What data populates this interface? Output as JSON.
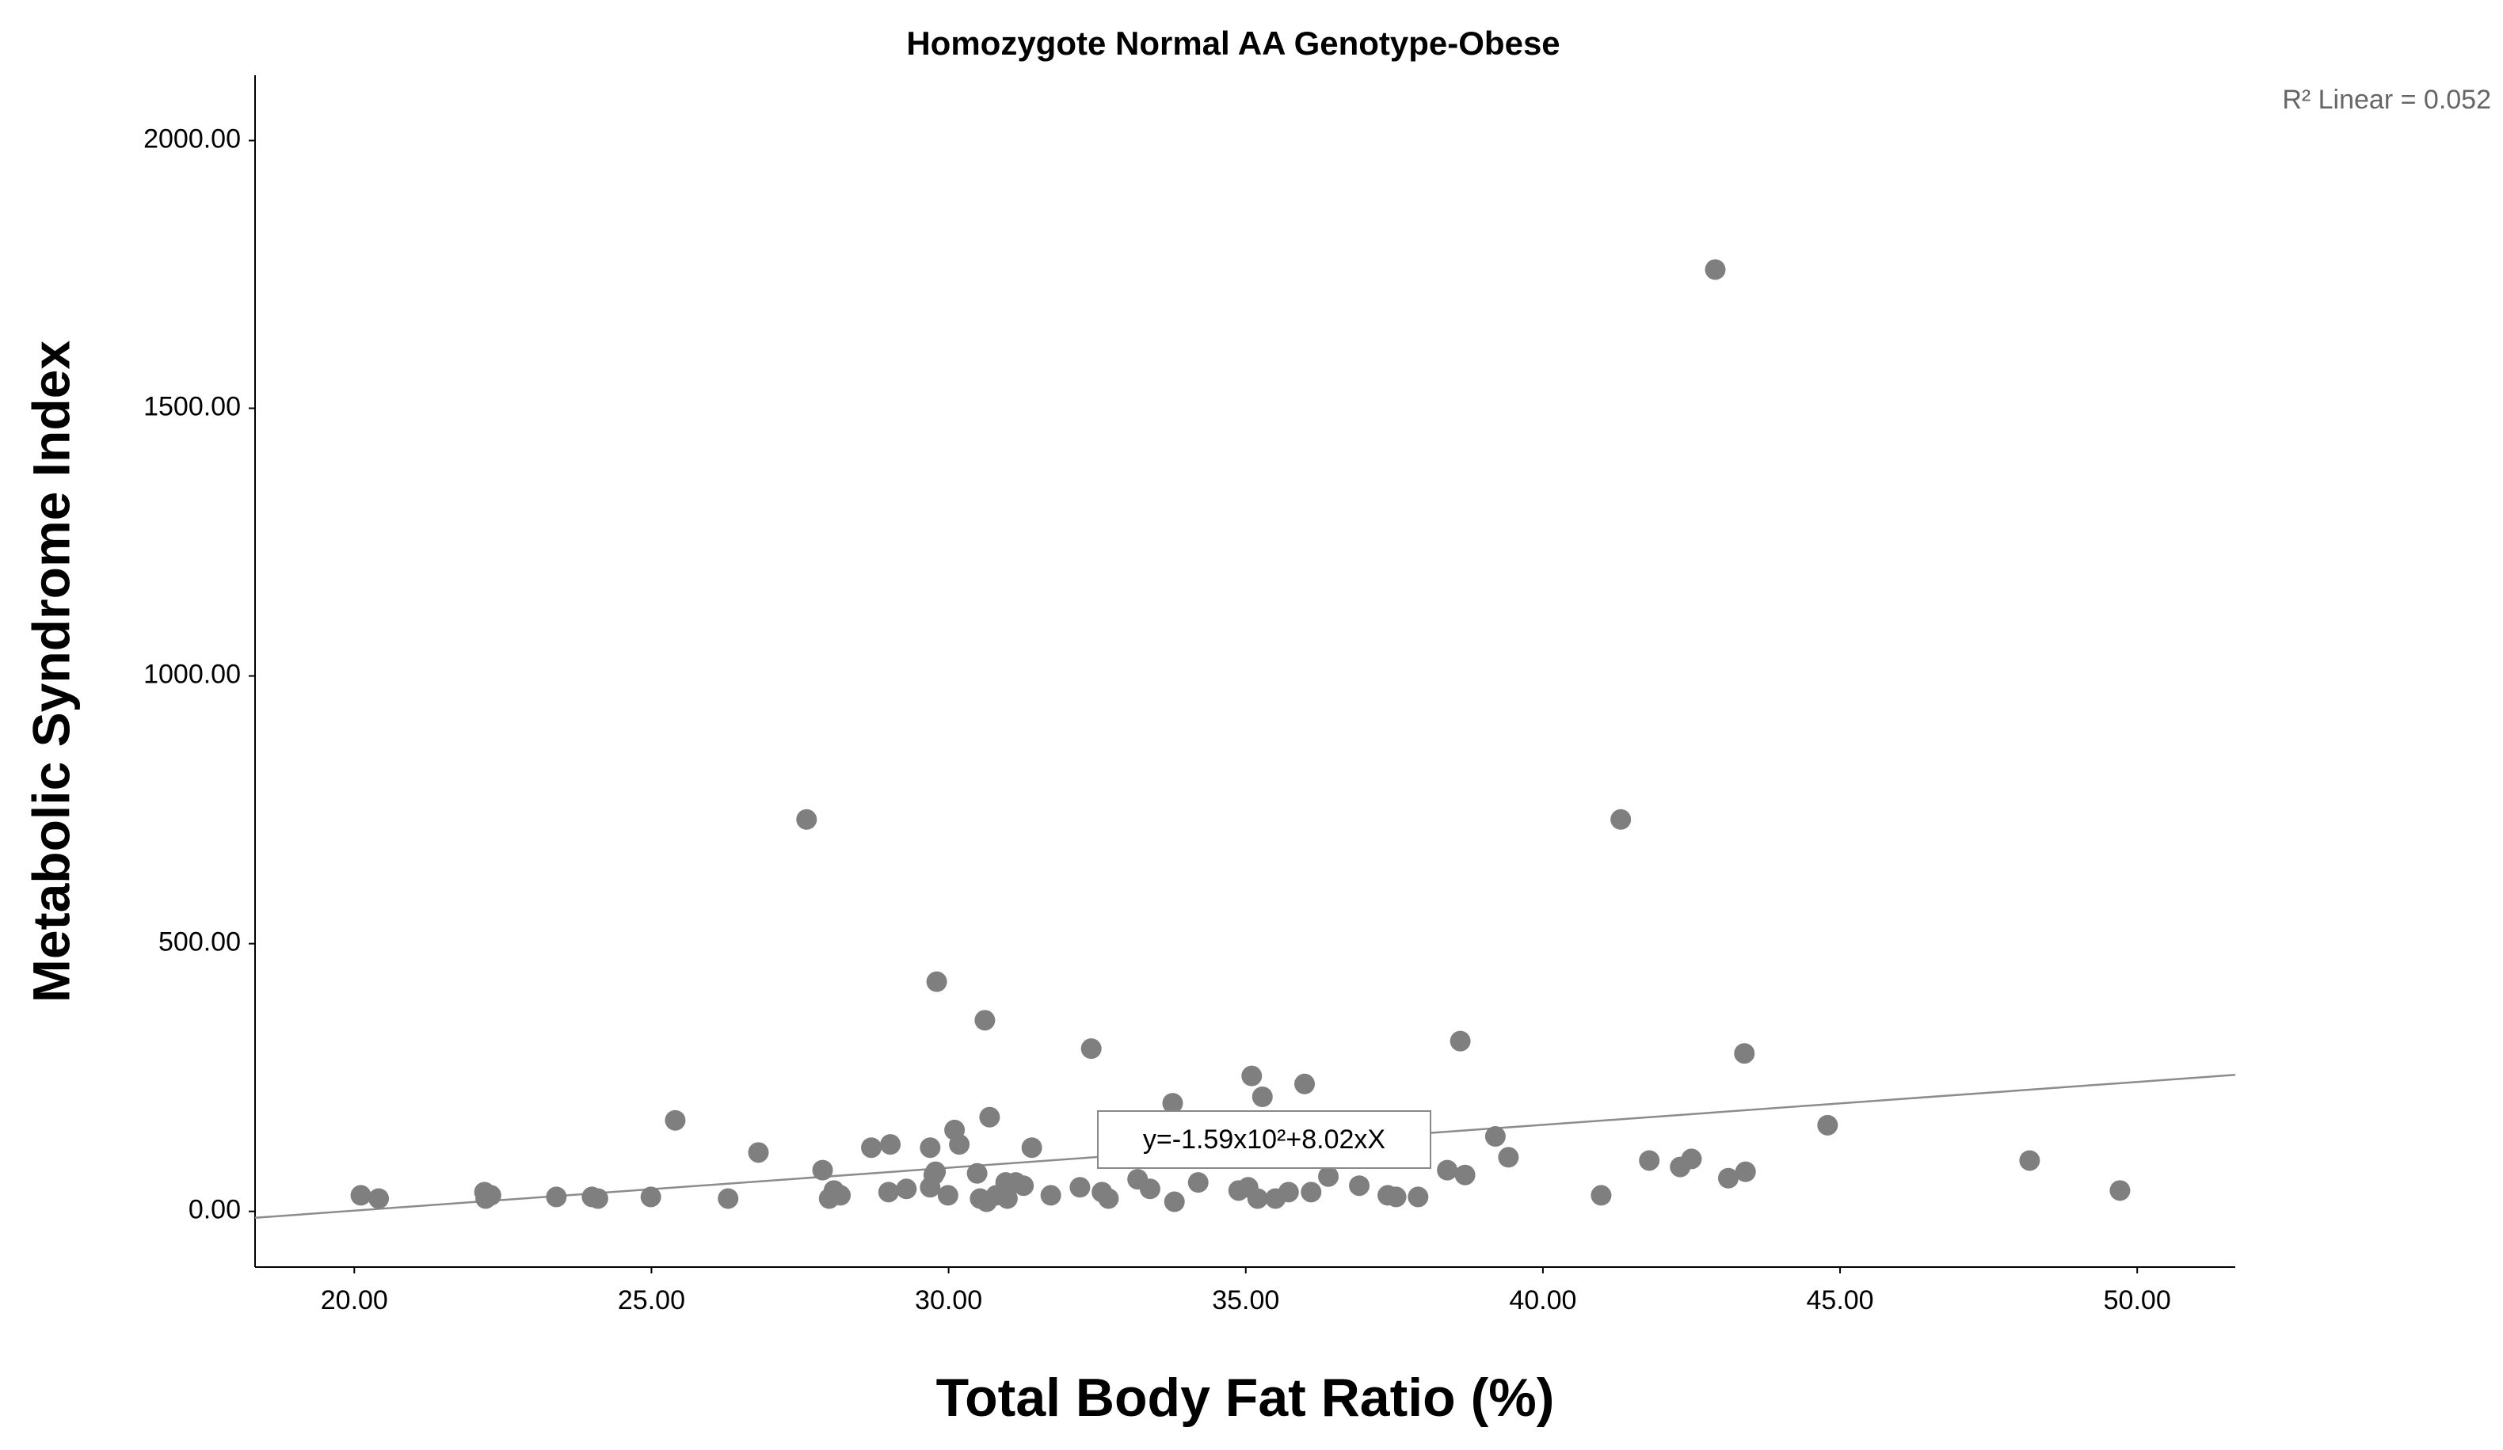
{
  "chart_data": {
    "type": "scatter",
    "title": "Homozygote Normal AA Genotype-Obese",
    "x_label": "Total Body Fat Ratio (%)",
    "y_label": "Metabolic Syndrome Index",
    "r2_label": "R² Linear = 0.052",
    "equation_label": "y=-1.59x10²+8.02xX",
    "color": "#7f7f7f",
    "line_color": "#8c8c8c",
    "xlim": [
      18.33,
      51.65
    ],
    "ylim": [
      -104,
      2122
    ],
    "xticks": [
      {
        "value": 20,
        "label": "20.00"
      },
      {
        "value": 25,
        "label": "25.00"
      },
      {
        "value": 30,
        "label": "30.00"
      },
      {
        "value": 35,
        "label": "35.00"
      },
      {
        "value": 40,
        "label": "40.00"
      },
      {
        "value": 45,
        "label": "45.00"
      },
      {
        "value": 50,
        "label": "50.00"
      }
    ],
    "yticks": [
      {
        "value": 0,
        "label": "0.00"
      },
      {
        "value": 500,
        "label": "500.00"
      },
      {
        "value": 1000,
        "label": "1000.00"
      },
      {
        "value": 1500,
        "label": "1500.00"
      },
      {
        "value": 2000,
        "label": "2000.00"
      }
    ],
    "x": [
      20.11,
      20.41,
      22.19,
      22.21,
      22.3,
      23.4,
      24.0,
      24.1,
      24.99,
      25.4,
      26.29,
      26.8,
      27.61,
      27.88,
      27.99,
      28.07,
      28.18,
      28.7,
      28.99,
      29.02,
      29.29,
      29.69,
      29.69,
      29.75,
      29.78,
      29.8,
      29.99,
      30.1,
      30.18,
      30.48,
      30.53,
      30.61,
      30.64,
      30.69,
      30.8,
      30.96,
      30.99,
      31.13,
      31.26,
      31.4,
      31.72,
      32.21,
      32.4,
      32.58,
      32.69,
      33.18,
      33.39,
      33.77,
      33.8,
      34.2,
      34.88,
      35.04,
      35.1,
      35.2,
      35.28,
      35.5,
      35.72,
      35.99,
      36.1,
      36.39,
      36.91,
      37.39,
      37.53,
      37.9,
      38.39,
      38.61,
      38.69,
      39.2,
      39.42,
      40.98,
      41.31,
      41.79,
      42.31,
      42.5,
      42.9,
      43.12,
      43.39,
      43.41,
      44.79,
      48.19,
      49.71
    ],
    "values": [
      30,
      24,
      36,
      24,
      30,
      27,
      27,
      24,
      27,
      170,
      24,
      110,
      732,
      77,
      24,
      39,
      30,
      119,
      36,
      125,
      42,
      119,
      45,
      68,
      74,
      429,
      30,
      152,
      125,
      71,
      24,
      357,
      18,
      176,
      30,
      54,
      24,
      54,
      48,
      119,
      30,
      45,
      304,
      36,
      24,
      60,
      42,
      202,
      18,
      54,
      39,
      45,
      253,
      24,
      214,
      24,
      36,
      238,
      36,
      65,
      48,
      30,
      27,
      27,
      77,
      318,
      68,
      140,
      101,
      30,
      732,
      95,
      83,
      98,
      1759,
      62,
      295,
      74,
      161,
      95,
      39
    ],
    "trend_line": {
      "x": [
        18.33,
        51.65
      ],
      "values": [
        -12,
        255
      ]
    }
  }
}
